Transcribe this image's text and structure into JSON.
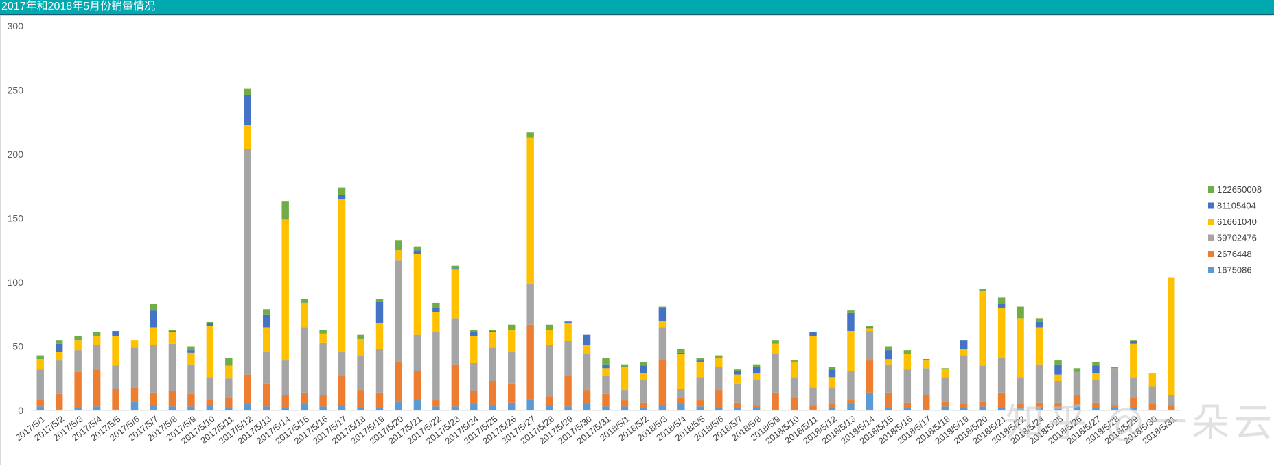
{
  "window": {
    "title": "2017年和2018年5月份销量情况"
  },
  "watermark": "知乎 @一朵云",
  "chart_data": {
    "type": "bar",
    "stacked": true,
    "title": "2017年和2018年5月份销量情况",
    "ylim": [
      0,
      300
    ],
    "yticks": [
      0,
      50,
      100,
      150,
      200,
      250,
      300
    ],
    "grid": false,
    "legend_position": "right",
    "categories": [
      "2017/5/1",
      "2017/5/2",
      "2017/5/3",
      "2017/5/4",
      "2017/5/5",
      "2017/5/6",
      "2017/5/7",
      "2017/5/8",
      "2017/5/9",
      "2017/5/10",
      "2017/5/11",
      "2017/5/12",
      "2017/5/13",
      "2017/5/14",
      "2017/5/15",
      "2017/5/16",
      "2017/5/17",
      "2017/5/18",
      "2017/5/19",
      "2017/5/20",
      "2017/5/21",
      "2017/5/22",
      "2017/5/23",
      "2017/5/24",
      "2017/5/25",
      "2017/5/26",
      "2017/5/27",
      "2017/5/28",
      "2017/5/29",
      "2017/5/30",
      "2017/5/31",
      "2018/5/1",
      "2018/5/2",
      "2018/5/3",
      "2018/5/4",
      "2018/5/5",
      "2018/5/6",
      "2018/5/7",
      "2018/5/8",
      "2018/5/9",
      "2018/5/10",
      "2018/5/11",
      "2018/5/12",
      "2018/5/13",
      "2018/5/14",
      "2018/5/15",
      "2018/5/16",
      "2018/5/17",
      "2018/5/18",
      "2018/5/19",
      "2018/5/20",
      "2018/5/21",
      "2018/5/22",
      "2018/5/24",
      "2018/5/25",
      "2018/5/26",
      "2018/5/27",
      "2018/5/28",
      "2018/5/29",
      "2018/5/30",
      "2018/5/31"
    ],
    "series": [
      {
        "name": "1675086",
        "color": "#5B9BD5",
        "values": [
          3,
          1,
          2,
          3,
          1,
          7,
          4,
          3,
          3,
          4,
          2,
          5,
          3,
          2,
          5,
          3,
          4,
          2,
          2,
          7,
          8,
          3,
          3,
          5,
          4,
          6,
          9,
          4,
          3,
          5,
          3,
          3,
          2,
          4,
          5,
          3,
          2,
          2,
          2,
          1,
          1,
          1,
          2,
          5,
          14,
          2,
          2,
          1,
          3,
          2,
          3,
          2,
          2,
          2,
          2,
          4,
          2,
          2,
          2,
          1,
          1
        ]
      },
      {
        "name": "2676448",
        "color": "#ED7D31",
        "values": [
          6,
          12,
          28,
          29,
          16,
          11,
          10,
          12,
          10,
          5,
          8,
          23,
          18,
          10,
          9,
          9,
          23,
          14,
          12,
          31,
          23,
          5,
          33,
          10,
          19,
          15,
          58,
          7,
          24,
          11,
          10,
          5,
          4,
          36,
          5,
          5,
          14,
          4,
          2,
          13,
          9,
          3,
          3,
          3,
          25,
          12,
          4,
          11,
          4,
          3,
          4,
          12,
          3,
          4,
          4,
          8,
          4,
          2,
          8,
          4,
          3
        ]
      },
      {
        "name": "59702476",
        "color": "#A5A5A5",
        "values": [
          23,
          26,
          17,
          19,
          18,
          31,
          37,
          37,
          23,
          17,
          15,
          176,
          25,
          27,
          51,
          41,
          19,
          27,
          34,
          79,
          28,
          53,
          36,
          22,
          26,
          25,
          32,
          40,
          27,
          28,
          14,
          8,
          18,
          25,
          7,
          18,
          18,
          15,
          20,
          30,
          16,
          14,
          13,
          23,
          23,
          22,
          26,
          21,
          19,
          38,
          28,
          27,
          21,
          30,
          17,
          18,
          18,
          29,
          16,
          14,
          8
        ]
      },
      {
        "name": "61661040",
        "color": "#FFC000",
        "values": [
          8,
          7,
          8,
          7,
          23,
          6,
          14,
          9,
          9,
          40,
          10,
          19,
          19,
          110,
          19,
          7,
          119,
          13,
          20,
          8,
          63,
          16,
          38,
          21,
          12,
          17,
          114,
          12,
          14,
          7,
          6,
          18,
          5,
          5,
          27,
          12,
          7,
          7,
          5,
          8,
          12,
          40,
          8,
          31,
          2,
          4,
          12,
          6,
          6,
          5,
          58,
          39,
          46,
          29,
          5,
          0,
          5,
          0,
          26,
          10,
          92
        ]
      },
      {
        "name": "81105404",
        "color": "#4472C4",
        "values": [
          0,
          6,
          0,
          0,
          4,
          0,
          13,
          1,
          2,
          2,
          0,
          23,
          10,
          0,
          0,
          0,
          3,
          0,
          17,
          0,
          3,
          3,
          1,
          3,
          1,
          0,
          0,
          0,
          1,
          8,
          3,
          0,
          6,
          10,
          1,
          1,
          0,
          3,
          5,
          0,
          0,
          3,
          6,
          14,
          1,
          7,
          0,
          1,
          0,
          7,
          0,
          3,
          0,
          4,
          8,
          0,
          6,
          0,
          2,
          0,
          0
        ]
      },
      {
        "name": "122650008",
        "color": "#70AD47",
        "values": [
          3,
          3,
          3,
          3,
          0,
          0,
          5,
          1,
          3,
          1,
          6,
          5,
          4,
          14,
          3,
          3,
          6,
          3,
          2,
          8,
          3,
          4,
          2,
          2,
          1,
          4,
          4,
          4,
          1,
          0,
          5,
          2,
          3,
          1,
          3,
          2,
          2,
          1,
          2,
          3,
          1,
          0,
          2,
          2,
          1,
          3,
          3,
          0,
          1,
          0,
          2,
          5,
          9,
          3,
          3,
          3,
          3,
          1,
          1,
          0,
          0
        ]
      }
    ]
  }
}
